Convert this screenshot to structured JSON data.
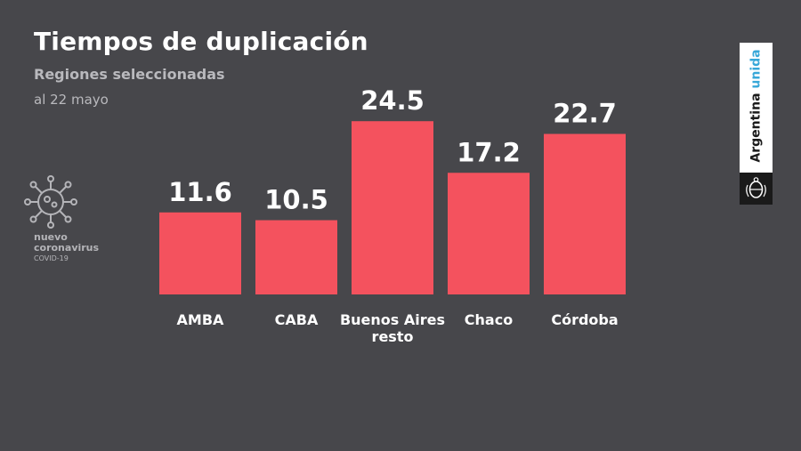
{
  "header": {
    "title": "Tiempos de duplicación",
    "subtitle": "Regiones seleccionadas",
    "date": "al 22 mayo"
  },
  "covid_label": {
    "line1": "nuevo",
    "line2": "coronavirus",
    "line3": "COVID-19",
    "icon": "virus-icon"
  },
  "badge": {
    "word1": "Argentina",
    "word2": "unida",
    "seal_icon": "coat-of-arms-icon",
    "accent": "#37a7d8"
  },
  "colors": {
    "background": "#47474b",
    "bar": "#f4525e",
    "text": "#ffffff",
    "muted": "#b9b9bd"
  },
  "chart_data": {
    "type": "bar",
    "title": "Tiempos de duplicación",
    "subtitle": "Regiones seleccionadas",
    "categories": [
      "AMBA",
      "CABA",
      "Buenos Aires resto",
      "Chaco",
      "Córdoba"
    ],
    "category_lines": [
      [
        "AMBA"
      ],
      [
        "CABA"
      ],
      [
        "Buenos Aires",
        "resto"
      ],
      [
        "Chaco"
      ],
      [
        "Córdoba"
      ]
    ],
    "values": [
      11.6,
      10.5,
      24.5,
      17.2,
      22.7
    ],
    "value_labels": [
      "11.6",
      "10.5",
      "24.5",
      "17.2",
      "22.7"
    ],
    "xlabel": "",
    "ylabel": "",
    "ylim": [
      0,
      25
    ],
    "grid": false,
    "legend": "none"
  }
}
